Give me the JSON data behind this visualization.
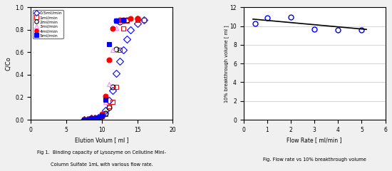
{
  "left_chart": {
    "series": {
      "0.5ml/min": {
        "x": [
          7.5,
          8.0,
          8.5,
          9.0,
          9.5,
          10.0,
          10.5,
          11.0,
          11.5,
          12.0,
          12.5,
          13.0,
          13.5,
          14.0,
          15.0,
          16.0
        ],
        "y": [
          0.0,
          0.0,
          0.01,
          0.01,
          0.02,
          0.04,
          0.08,
          0.17,
          0.26,
          0.41,
          0.52,
          0.62,
          0.72,
          0.8,
          0.86,
          0.89
        ],
        "color": "blue",
        "marker": "D",
        "filled": false
      },
      "1ml/min": {
        "x": [
          7.5,
          8.0,
          8.5,
          9.0,
          9.5,
          10.0,
          10.5,
          11.0,
          11.5,
          12.0,
          12.5,
          13.0,
          13.5,
          15.0,
          16.0
        ],
        "y": [
          0.0,
          0.0,
          0.01,
          0.01,
          0.02,
          0.03,
          0.05,
          0.12,
          0.16,
          0.29,
          0.62,
          0.81,
          0.88,
          0.89,
          0.89
        ],
        "color": "red",
        "marker": "s",
        "filled": false
      },
      "2ml/min": {
        "x": [
          7.5,
          8.0,
          8.5,
          9.0,
          9.5,
          10.0,
          10.5,
          11.0,
          11.5,
          12.0,
          12.5,
          13.0,
          13.5,
          15.0
        ],
        "y": [
          0.0,
          0.0,
          0.01,
          0.01,
          0.02,
          0.03,
          0.06,
          0.11,
          0.29,
          0.63,
          0.87,
          0.88,
          0.89,
          0.9
        ],
        "color": "black",
        "marker": "o",
        "filled": false
      },
      "3ml/min": {
        "x": [
          7.5,
          8.0,
          8.5,
          9.0,
          9.5,
          10.0,
          10.5,
          11.0,
          11.5,
          12.0,
          12.5
        ],
        "y": [
          0.0,
          0.0,
          0.01,
          0.01,
          0.02,
          0.04,
          0.16,
          0.32,
          0.62,
          0.82,
          0.88
        ],
        "color": "#ff88ff",
        "marker": "^",
        "filled": false
      },
      "4ml/min": {
        "x": [
          7.5,
          8.0,
          8.5,
          9.0,
          9.5,
          10.0,
          10.5,
          11.0,
          11.5,
          12.0,
          12.5,
          13.0,
          14.0,
          15.0
        ],
        "y": [
          0.0,
          0.0,
          0.01,
          0.01,
          0.02,
          0.05,
          0.21,
          0.53,
          0.81,
          0.88,
          0.89,
          0.89,
          0.9,
          0.9
        ],
        "color": "red",
        "marker": "o",
        "filled": true
      },
      "5ml/min": {
        "x": [
          7.5,
          8.0,
          8.5,
          9.0,
          9.5,
          10.0,
          10.5,
          11.0,
          12.0,
          13.0
        ],
        "y": [
          0.0,
          0.0,
          0.01,
          0.01,
          0.02,
          0.04,
          0.18,
          0.67,
          0.88,
          0.89
        ],
        "color": "blue",
        "marker": "s",
        "filled": true
      }
    },
    "xlabel": "Elution Volum [ ml ]",
    "ylabel": "C/Co",
    "xlim": [
      0,
      20
    ],
    "ylim": [
      0,
      1.0
    ],
    "xticks": [
      0,
      5,
      10,
      15,
      20
    ],
    "yticks": [
      0,
      0.2,
      0.4,
      0.6,
      0.8,
      1.0
    ],
    "caption_line1": "Fig 1.  Binding capacity of Lysozyme on Cellutine Mini-",
    "caption_line2": "Column Sulfate 1mL with various flow rate."
  },
  "right_chart": {
    "x": [
      0.5,
      1.0,
      2.0,
      3.0,
      4.0,
      5.0
    ],
    "y": [
      10.3,
      10.9,
      11.0,
      9.7,
      9.6,
      9.6
    ],
    "trendline_x": [
      0.4,
      5.2
    ],
    "trendline_y": [
      10.75,
      9.65
    ],
    "xlabel": "Flow Rate [ ml/min ]",
    "ylabel": "10% breakthrough volume [ ml ]",
    "xlim": [
      0,
      6
    ],
    "ylim": [
      0,
      12
    ],
    "xticks": [
      0,
      1,
      2,
      3,
      4,
      5,
      6
    ],
    "yticks": [
      0,
      2,
      4,
      6,
      8,
      10,
      12
    ],
    "caption": "Fig. Flow rate vs 10% breakthrough volume",
    "marker_color": "blue",
    "line_color": "black"
  },
  "fig_width": 5.5,
  "fig_height": 2.4,
  "dpi": 100,
  "bg_color": "#f0f0f0"
}
